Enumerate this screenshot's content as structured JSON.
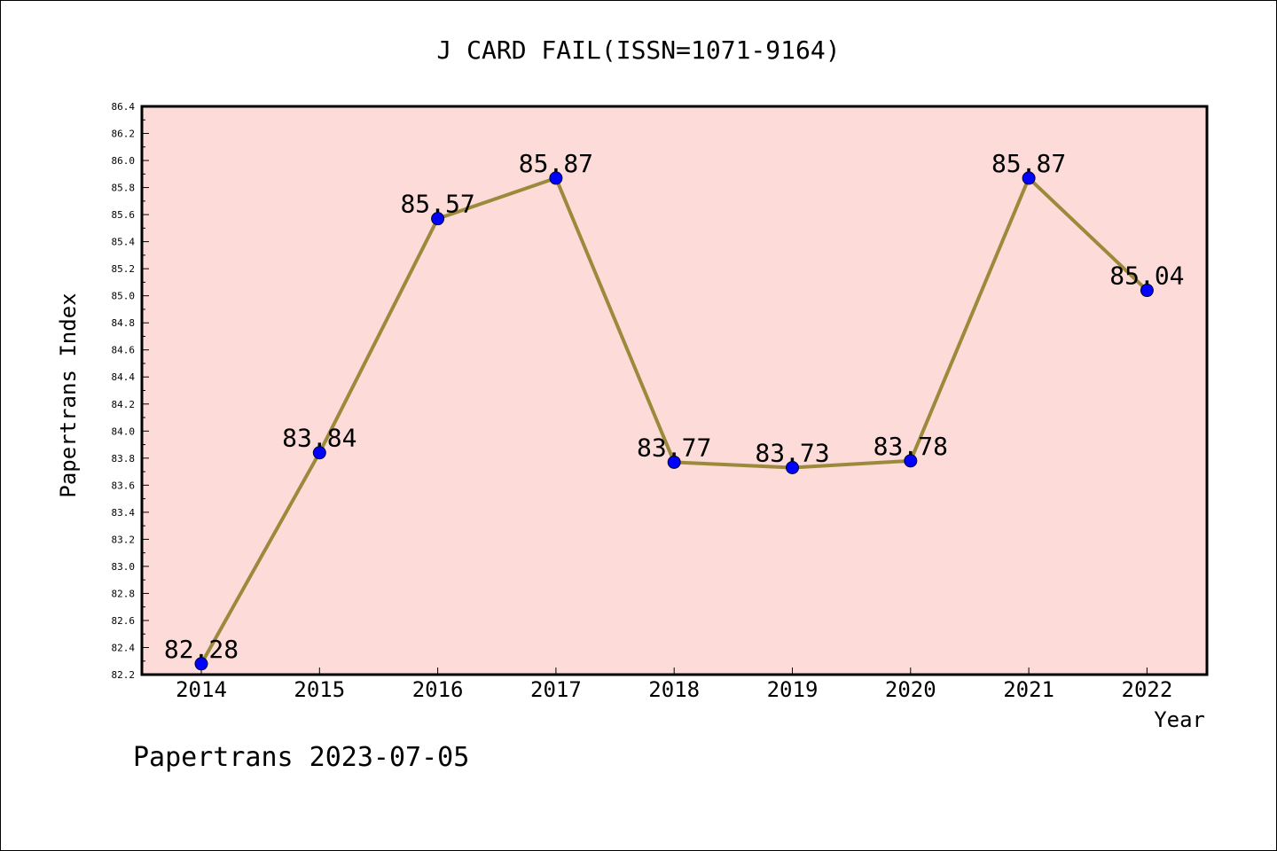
{
  "chart_data": {
    "type": "line",
    "title": "J CARD FAIL(ISSN=1071-9164)",
    "xlabel": "Year",
    "ylabel": "Papertrans Index",
    "footer": "Papertrans 2023-07-05",
    "x": [
      "2014",
      "2015",
      "2016",
      "2017",
      "2018",
      "2019",
      "2020",
      "2021",
      "2022"
    ],
    "values": [
      82.28,
      83.84,
      85.57,
      85.87,
      83.77,
      83.73,
      83.78,
      85.87,
      85.04
    ],
    "data_labels": [
      "82.28",
      "83.84",
      "85.57",
      "85.87",
      "83.77",
      "83.73",
      "83.78",
      "85.87",
      "85.04"
    ],
    "ylim": [
      82.2,
      86.4
    ],
    "yticks": [
      "82.2",
      "82.4",
      "82.6",
      "82.8",
      "83.0",
      "83.2",
      "83.4",
      "83.6",
      "83.8",
      "84.0",
      "84.2",
      "84.4",
      "84.6",
      "84.8",
      "85.0",
      "85.2",
      "85.4",
      "85.6",
      "85.8",
      "86.0",
      "86.2",
      "86.4"
    ],
    "grid": false,
    "colors": {
      "plot_background": "#fddbd9",
      "line": "#9b8a3c",
      "marker": "#0000ff"
    }
  }
}
